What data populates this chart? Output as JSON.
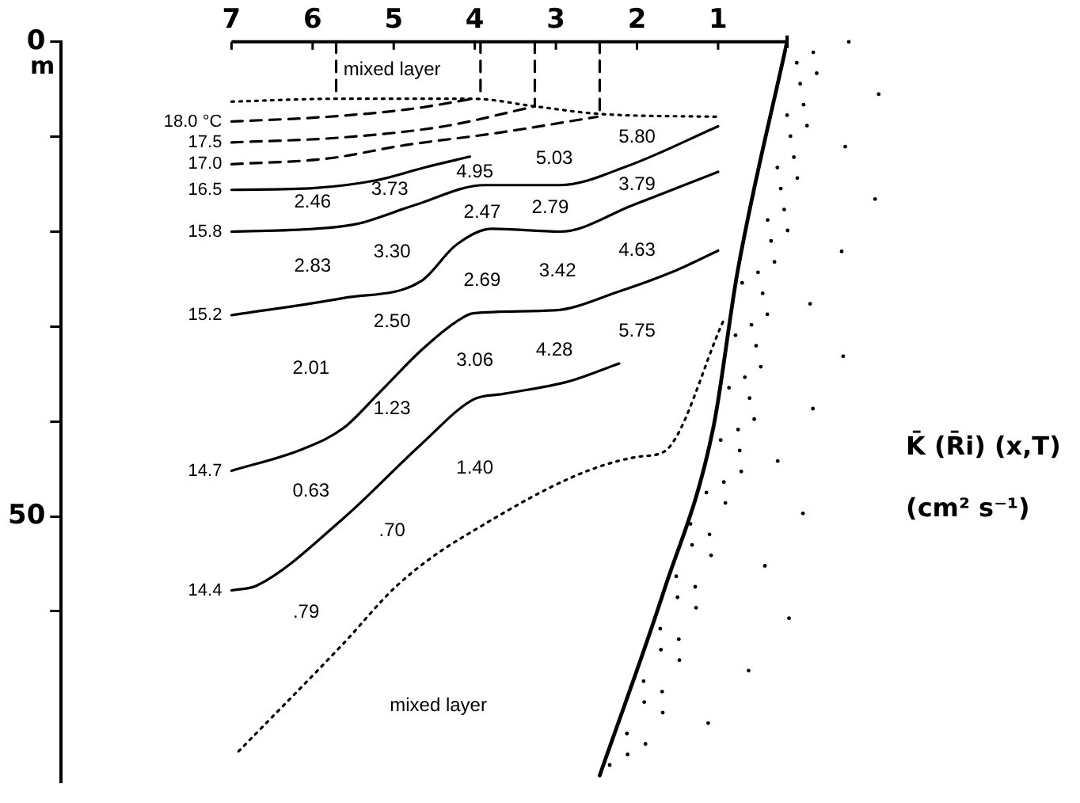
{
  "chart_data": {
    "type": "line",
    "xlim": [
      9.1,
      0.15
    ],
    "xticks": [
      7,
      6,
      5,
      4,
      3,
      2,
      1
    ],
    "ylim": [
      78,
      0
    ],
    "yticks": [
      0,
      {
        "value": 10,
        "label": null
      },
      {
        "value": 20,
        "label": null
      },
      {
        "value": 30,
        "label": null
      },
      {
        "value": 40,
        "label": null
      },
      50,
      {
        "value": 60,
        "label": null
      }
    ],
    "ylabel": "m",
    "grid": false,
    "legend": false,
    "marker": "none",
    "series": [
      {
        "name": "18.0 °C",
        "color": "#000000",
        "line_style": "dashed",
        "x": [
          7,
          5.82,
          4.81,
          4.02
        ],
        "values": [
          8.4,
          7.9,
          7.1,
          6.0
        ]
      },
      {
        "name": "17.5",
        "color": "#000000",
        "line_style": "dashed",
        "x": [
          7,
          5.67,
          4.38,
          3.26
        ],
        "values": [
          10.6,
          10.1,
          8.9,
          6.8
        ]
      },
      {
        "name": "17.0",
        "color": "#000000",
        "line_style": "dashed",
        "x": [
          7,
          5.82,
          4.87,
          3.72,
          2.49
        ],
        "values": [
          12.9,
          12.3,
          10.9,
          9.6,
          7.9
        ]
      },
      {
        "name": "16.5",
        "color": "#000000",
        "line_style": "solid",
        "x": [
          7,
          5.97,
          5.22,
          4.6,
          4.06
        ],
        "values": [
          15.6,
          15.4,
          14.6,
          13.2,
          12.1
        ]
      },
      {
        "name": "15.8",
        "color": "#000000",
        "line_style": "solid",
        "x": [
          7,
          5.97,
          5.46,
          4.74,
          3.88,
          2.95,
          2.12,
          1.0
        ],
        "values": [
          20.0,
          19.7,
          19.2,
          17.2,
          15.1,
          15.1,
          13.1,
          8.9
        ]
      },
      {
        "name": "15.2",
        "color": "#000000",
        "line_style": "solid",
        "x": [
          7,
          5.62,
          4.66,
          4.23,
          3.79,
          2.95,
          2.05,
          1.0
        ],
        "values": [
          28.8,
          27.0,
          25.2,
          21.4,
          19.7,
          20.0,
          17.2,
          13.7
        ]
      },
      {
        "name": "14.7",
        "color": "#000000",
        "line_style": "solid",
        "x": [
          7,
          6.12,
          5.62,
          5.17,
          4.66,
          4.23,
          4.02,
          3.02,
          2.22,
          1.55,
          1.0
        ],
        "values": [
          45.2,
          42.9,
          40.7,
          36.9,
          32.5,
          29.5,
          28.6,
          28.3,
          26.3,
          24.2,
          22.0
        ]
      },
      {
        "name": "14.4",
        "color": "#000000",
        "line_style": "solid",
        "x": [
          7,
          6.69,
          5.62,
          4.66,
          4.02,
          3.65,
          2.85,
          2.22
        ],
        "values": [
          57.8,
          57.3,
          50.2,
          42.4,
          37.7,
          37.1,
          35.8,
          33.9
        ]
      },
      {
        "color": "#000000",
        "line_style": "dotted",
        "x": [
          7,
          5.71,
          4.02,
          3.26,
          2.46,
          1.0
        ],
        "values": [
          6.3,
          6.0,
          6.0,
          6.8,
          7.6,
          7.9
        ]
      },
      {
        "color": "#000000",
        "line_style": "dashed",
        "x": [
          5.71,
          5.71
        ],
        "values": [
          0,
          6.0
        ]
      },
      {
        "color": "#000000",
        "line_style": "dashed",
        "x": [
          3.93,
          3.93
        ],
        "values": [
          0,
          6.0
        ]
      },
      {
        "color": "#000000",
        "line_style": "dashed",
        "x": [
          3.26,
          3.26
        ],
        "values": [
          0,
          6.8
        ]
      },
      {
        "color": "#000000",
        "line_style": "dashed",
        "x": [
          2.46,
          2.46
        ],
        "values": [
          0,
          7.6
        ]
      },
      {
        "color": "#000000",
        "line_style": "dotted",
        "x": [
          0.94,
          1.67,
          1.97,
          4.17,
          4.96,
          5.62,
          6.94
        ],
        "values": [
          29.5,
          43.2,
          43.7,
          52.3,
          57.3,
          63.4,
          75.0
        ]
      },
      {
        "color": "#000000",
        "line_style": "solid",
        "x": [
          0.15,
          0.76,
          1.06,
          1.67,
          2.46
        ],
        "values": [
          0,
          24.2,
          40.7,
          57.9,
          77.3
        ]
      }
    ],
    "annotations": [
      "mixed layer",
      "mixed layer",
      "5.80",
      "5.03",
      "4.95",
      "3.73",
      "2.46",
      "3.79",
      "2.47",
      "2.79",
      "2.83",
      "3.30",
      "2.69",
      "3.42",
      "4.63",
      "2.50",
      "2.01",
      "3.06",
      "4.28",
      "5.75",
      "1.23",
      "0.63",
      "1.40",
      ".70",
      ".79",
      "K̄ (R̄i) (x,T)",
      "(cm² s⁻¹)"
    ]
  }
}
